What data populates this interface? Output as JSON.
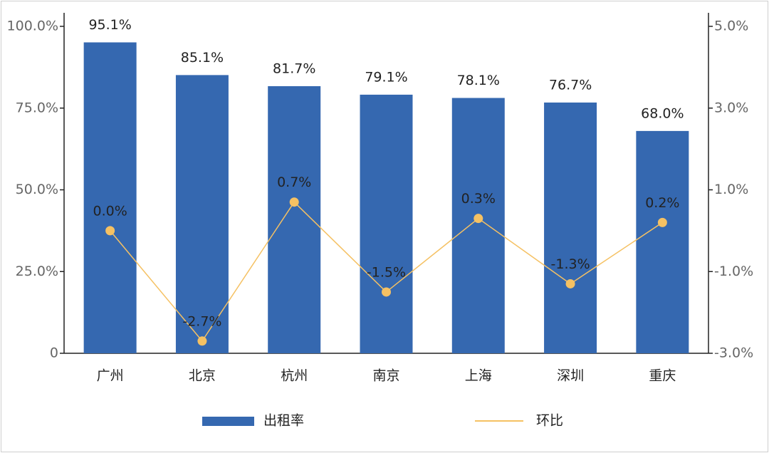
{
  "chart_data": {
    "type": "bar",
    "categories": [
      "广州",
      "北京",
      "杭州",
      "南京",
      "上海",
      "深圳",
      "重庆"
    ],
    "series": [
      {
        "name": "出租率",
        "type": "bar",
        "color": "#3568b0",
        "values": [
          95.1,
          85.1,
          81.7,
          79.1,
          78.1,
          76.7,
          68.0
        ],
        "value_labels": [
          "95.1%",
          "85.1%",
          "81.7%",
          "79.1%",
          "78.1%",
          "76.7%",
          "68.0%"
        ]
      },
      {
        "name": "环比",
        "type": "line",
        "axis": "y2",
        "color": "#f5c163",
        "values": [
          0.0,
          -2.7,
          0.7,
          -1.5,
          0.3,
          -1.3,
          0.2
        ],
        "value_labels": [
          "0.0%",
          "-2.7%",
          "0.7%",
          "-1.5%",
          "0.3%",
          "-1.3%",
          "0.2%"
        ]
      }
    ],
    "ylim": [
      0,
      100
    ],
    "yticks": [
      0,
      {
        "value": 25,
        "label": "25.0%"
      },
      {
        "value": 50,
        "label": "50.0%"
      },
      {
        "value": 75,
        "label": "75.0%"
      },
      {
        "value": 100,
        "label": "100.0%"
      }
    ],
    "y2lim": [
      -3,
      5
    ],
    "y2ticks": [
      {
        "value": -3,
        "label": "-3.0%"
      },
      {
        "value": -1,
        "label": "-1.0%"
      },
      {
        "value": 1,
        "label": "1.0%"
      },
      {
        "value": 3,
        "label": "3.0%"
      },
      {
        "value": 5,
        "label": "5.0%"
      }
    ],
    "legend": "bottom"
  }
}
